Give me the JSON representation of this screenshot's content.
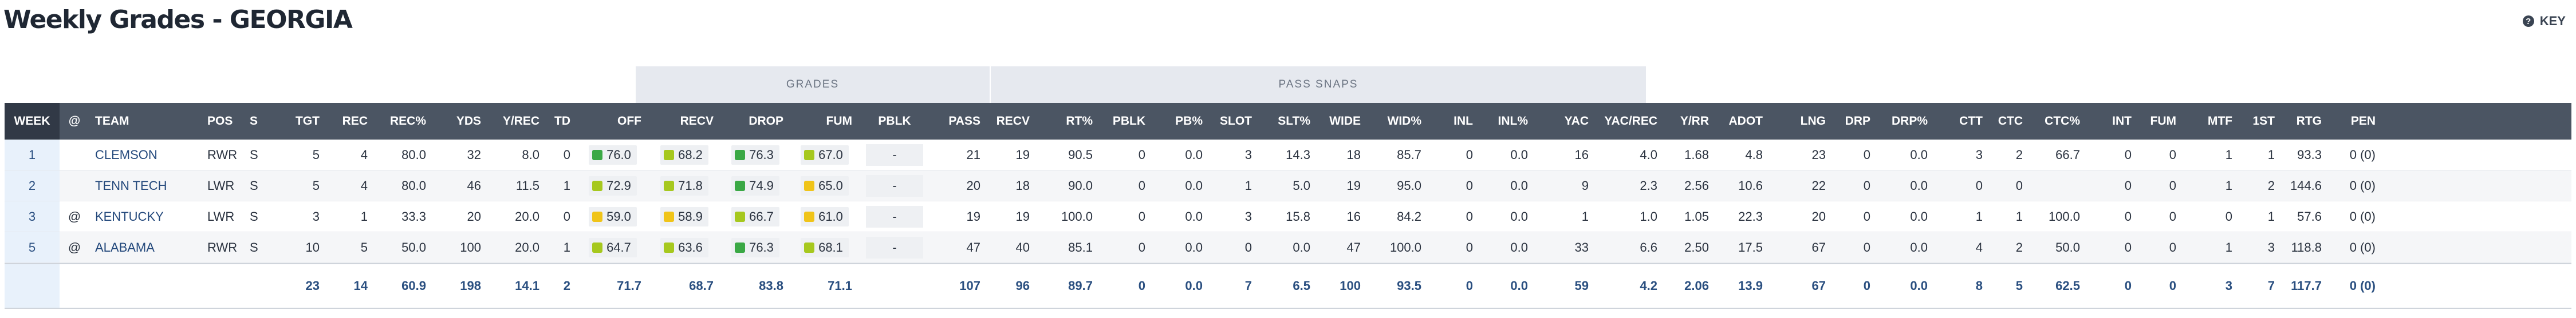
{
  "page": {
    "title": "Weekly Grades - GEORGIA"
  },
  "key_button": {
    "label": "KEY",
    "icon": "help-icon"
  },
  "groups": {
    "grades": "GRADES",
    "pass_snaps": "PASS SNAPS"
  },
  "colors": {
    "header_bg": "#4b5563",
    "week_header_bg": "#313946",
    "grade_green": "#3aa845",
    "grade_lime": "#a6c81e",
    "grade_yellow": "#f0c419",
    "link": "#24497c"
  },
  "columns": [
    {
      "key": "week",
      "label": "WEEK"
    },
    {
      "key": "at",
      "label": "@"
    },
    {
      "key": "team",
      "label": "TEAM"
    },
    {
      "key": "pos",
      "label": "POS"
    },
    {
      "key": "s",
      "label": "S"
    },
    {
      "key": "tgt",
      "label": "TGT"
    },
    {
      "key": "rec",
      "label": "REC"
    },
    {
      "key": "rec_pct",
      "label": "REC%"
    },
    {
      "key": "yds",
      "label": "YDS"
    },
    {
      "key": "y_rec",
      "label": "Y/REC"
    },
    {
      "key": "td",
      "label": "TD"
    },
    {
      "key": "off",
      "label": "OFF"
    },
    {
      "key": "recv",
      "label": "RECV"
    },
    {
      "key": "drop",
      "label": "DROP"
    },
    {
      "key": "fum",
      "label": "FUM"
    },
    {
      "key": "pblk",
      "label": "PBLK"
    },
    {
      "key": "pass",
      "label": "PASS"
    },
    {
      "key": "recv2",
      "label": "RECV"
    },
    {
      "key": "rt_pct",
      "label": "RT%"
    },
    {
      "key": "pblk2",
      "label": "PBLK"
    },
    {
      "key": "pb_pct",
      "label": "PB%"
    },
    {
      "key": "slot",
      "label": "SLOT"
    },
    {
      "key": "slt_pct",
      "label": "SLT%"
    },
    {
      "key": "wide",
      "label": "WIDE"
    },
    {
      "key": "wid_pct",
      "label": "WID%"
    },
    {
      "key": "inl",
      "label": "INL"
    },
    {
      "key": "inl_pct",
      "label": "INL%"
    },
    {
      "key": "yac",
      "label": "YAC"
    },
    {
      "key": "yac_rec",
      "label": "YAC/REC"
    },
    {
      "key": "y_rr",
      "label": "Y/RR"
    },
    {
      "key": "adot",
      "label": "ADOT"
    },
    {
      "key": "lng",
      "label": "LNG"
    },
    {
      "key": "drp",
      "label": "DRP"
    },
    {
      "key": "drp_pct",
      "label": "DRP%"
    },
    {
      "key": "ctt",
      "label": "CTT"
    },
    {
      "key": "ctc",
      "label": "CTC"
    },
    {
      "key": "ctc_pct",
      "label": "CTC%"
    },
    {
      "key": "int",
      "label": "INT"
    },
    {
      "key": "fum2",
      "label": "FUM"
    },
    {
      "key": "mtf",
      "label": "MTF"
    },
    {
      "key": "first",
      "label": "1ST"
    },
    {
      "key": "rtg",
      "label": "RTG"
    },
    {
      "key": "pen",
      "label": "PEN"
    }
  ],
  "rows": [
    {
      "week": "1",
      "at": "",
      "team": "CLEMSON",
      "pos": "RWR",
      "s": "S",
      "tgt": "5",
      "rec": "4",
      "rec_pct": "80.0",
      "yds": "32",
      "y_rec": "8.0",
      "td": "0",
      "off": "76.0",
      "off_c": "green",
      "recv": "68.2",
      "recv_c": "lime",
      "drop": "76.3",
      "drop_c": "green",
      "fum": "67.0",
      "fum_c": "lime",
      "pblk": "-",
      "pass": "21",
      "recv2": "19",
      "rt_pct": "90.5",
      "pblk2": "0",
      "pb_pct": "0.0",
      "slot": "3",
      "slt_pct": "14.3",
      "wide": "18",
      "wid_pct": "85.7",
      "inl": "0",
      "inl_pct": "0.0",
      "yac": "16",
      "yac_rec": "4.0",
      "y_rr": "1.68",
      "adot": "4.8",
      "lng": "23",
      "drp": "0",
      "drp_pct": "0.0",
      "ctt": "3",
      "ctc": "2",
      "ctc_pct": "66.7",
      "int": "0",
      "fum2": "0",
      "mtf": "1",
      "first": "1",
      "rtg": "93.3",
      "pen": "0 (0)"
    },
    {
      "week": "2",
      "at": "",
      "team": "TENN TECH",
      "pos": "LWR",
      "s": "S",
      "tgt": "5",
      "rec": "4",
      "rec_pct": "80.0",
      "yds": "46",
      "y_rec": "11.5",
      "td": "1",
      "off": "72.9",
      "off_c": "lime",
      "recv": "71.8",
      "recv_c": "lime",
      "drop": "74.9",
      "drop_c": "green",
      "fum": "65.0",
      "fum_c": "yellow",
      "pblk": "-",
      "pass": "20",
      "recv2": "18",
      "rt_pct": "90.0",
      "pblk2": "0",
      "pb_pct": "0.0",
      "slot": "1",
      "slt_pct": "5.0",
      "wide": "19",
      "wid_pct": "95.0",
      "inl": "0",
      "inl_pct": "0.0",
      "yac": "9",
      "yac_rec": "2.3",
      "y_rr": "2.56",
      "adot": "10.6",
      "lng": "22",
      "drp": "0",
      "drp_pct": "0.0",
      "ctt": "0",
      "ctc": "0",
      "ctc_pct": "",
      "int": "0",
      "fum2": "0",
      "mtf": "1",
      "first": "2",
      "rtg": "144.6",
      "pen": "0 (0)"
    },
    {
      "week": "3",
      "at": "@",
      "team": "KENTUCKY",
      "pos": "LWR",
      "s": "S",
      "tgt": "3",
      "rec": "1",
      "rec_pct": "33.3",
      "yds": "20",
      "y_rec": "20.0",
      "td": "0",
      "off": "59.0",
      "off_c": "yellow",
      "recv": "58.9",
      "recv_c": "yellow",
      "drop": "66.7",
      "drop_c": "lime",
      "fum": "61.0",
      "fum_c": "yellow",
      "pblk": "-",
      "pass": "19",
      "recv2": "19",
      "rt_pct": "100.0",
      "pblk2": "0",
      "pb_pct": "0.0",
      "slot": "3",
      "slt_pct": "15.8",
      "wide": "16",
      "wid_pct": "84.2",
      "inl": "0",
      "inl_pct": "0.0",
      "yac": "1",
      "yac_rec": "1.0",
      "y_rr": "1.05",
      "adot": "22.3",
      "lng": "20",
      "drp": "0",
      "drp_pct": "0.0",
      "ctt": "1",
      "ctc": "1",
      "ctc_pct": "100.0",
      "int": "0",
      "fum2": "0",
      "mtf": "0",
      "first": "1",
      "rtg": "57.6",
      "pen": "0 (0)"
    },
    {
      "week": "5",
      "at": "@",
      "team": "ALABAMA",
      "pos": "RWR",
      "s": "S",
      "tgt": "10",
      "rec": "5",
      "rec_pct": "50.0",
      "yds": "100",
      "y_rec": "20.0",
      "td": "1",
      "off": "64.7",
      "off_c": "lime",
      "recv": "63.6",
      "recv_c": "lime",
      "drop": "76.3",
      "drop_c": "green",
      "fum": "68.1",
      "fum_c": "lime",
      "pblk": "-",
      "pass": "47",
      "recv2": "40",
      "rt_pct": "85.1",
      "pblk2": "0",
      "pb_pct": "0.0",
      "slot": "0",
      "slt_pct": "0.0",
      "wide": "47",
      "wid_pct": "100.0",
      "inl": "0",
      "inl_pct": "0.0",
      "yac": "33",
      "yac_rec": "6.6",
      "y_rr": "2.50",
      "adot": "17.5",
      "lng": "67",
      "drp": "0",
      "drp_pct": "0.0",
      "ctt": "4",
      "ctc": "2",
      "ctc_pct": "50.0",
      "int": "0",
      "fum2": "0",
      "mtf": "1",
      "first": "3",
      "rtg": "118.8",
      "pen": "0 (0)"
    }
  ],
  "totals": {
    "tgt": "23",
    "rec": "14",
    "rec_pct": "60.9",
    "yds": "198",
    "y_rec": "14.1",
    "td": "2",
    "off": "71.7",
    "recv": "68.7",
    "drop": "83.8",
    "fum": "71.1",
    "pass": "107",
    "recv2": "96",
    "rt_pct": "89.7",
    "pblk2": "0",
    "pb_pct": "0.0",
    "slot": "7",
    "slt_pct": "6.5",
    "wide": "100",
    "wid_pct": "93.5",
    "inl": "0",
    "inl_pct": "0.0",
    "yac": "59",
    "yac_rec": "4.2",
    "y_rr": "2.06",
    "adot": "13.9",
    "lng": "67",
    "drp": "0",
    "drp_pct": "0.0",
    "ctt": "8",
    "ctc": "5",
    "ctc_pct": "62.5",
    "int": "0",
    "fum2": "0",
    "mtf": "3",
    "first": "7",
    "rtg": "117.7",
    "pen": "0 (0)"
  }
}
